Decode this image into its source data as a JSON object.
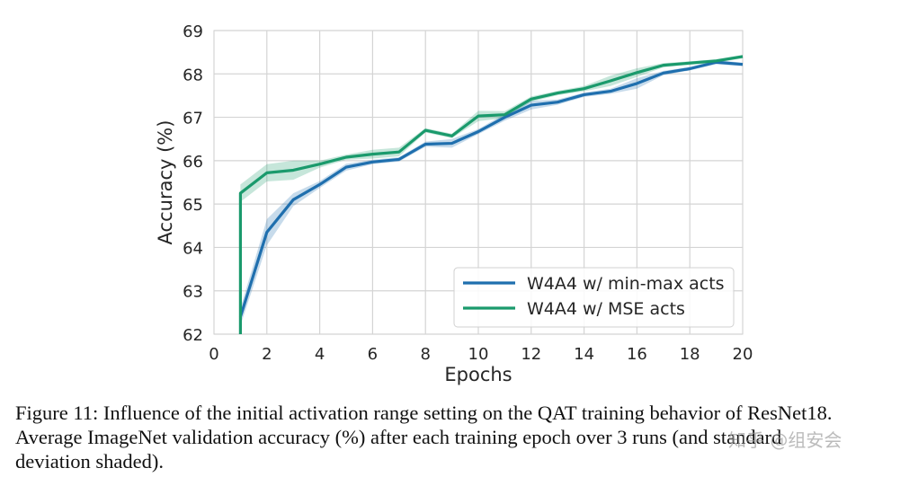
{
  "chart_data": {
    "type": "line",
    "xlabel": "Epochs",
    "ylabel": "Accuracy (%)",
    "xlim": [
      0,
      20
    ],
    "ylim": [
      62,
      69
    ],
    "xticks": [
      0,
      2,
      4,
      6,
      8,
      10,
      12,
      14,
      16,
      18,
      20
    ],
    "yticks": [
      62,
      63,
      64,
      65,
      66,
      67,
      68,
      69
    ],
    "grid": true,
    "legend_position": "lower-right",
    "series": [
      {
        "name": "W4A4 w/ min-max acts",
        "color": "#1f6fae",
        "x": [
          1,
          2,
          3,
          4,
          5,
          6,
          7,
          8,
          9,
          10,
          11,
          12,
          13,
          14,
          15,
          16,
          17,
          18,
          19,
          20
        ],
        "y": [
          62.4,
          64.35,
          65.1,
          65.45,
          65.85,
          65.97,
          66.03,
          66.38,
          66.4,
          66.67,
          67.0,
          67.28,
          67.35,
          67.52,
          67.6,
          67.78,
          68.02,
          68.12,
          68.27,
          68.22
        ],
        "band": [
          0.2,
          0.3,
          0.15,
          0.08,
          0.08,
          0.05,
          0.05,
          0.06,
          0.1,
          0.06,
          0.08,
          0.1,
          0.06,
          0.05,
          0.06,
          0.12,
          0.05,
          0.04,
          0.05,
          0.04
        ]
      },
      {
        "name": "W4A4 w/ MSE acts",
        "color": "#1a9a6c",
        "x": [
          1,
          1,
          2,
          3,
          4,
          5,
          6,
          7,
          8,
          9,
          10,
          11,
          12,
          13,
          14,
          15,
          16,
          17,
          18,
          19,
          20
        ],
        "y": [
          62.0,
          65.25,
          65.72,
          65.78,
          65.92,
          66.08,
          66.15,
          66.2,
          66.7,
          66.57,
          67.03,
          67.06,
          67.42,
          67.56,
          67.66,
          67.84,
          68.03,
          68.2,
          68.25,
          68.3,
          68.4
        ],
        "band": [
          0.0,
          0.2,
          0.2,
          0.22,
          0.08,
          0.06,
          0.1,
          0.1,
          0.05,
          0.05,
          0.12,
          0.08,
          0.06,
          0.05,
          0.06,
          0.12,
          0.1,
          0.05,
          0.04,
          0.04,
          0.04
        ]
      }
    ]
  },
  "caption": {
    "line1": "Figure 11: Influence of the initial activation range setting on the QAT training behavior of ResNet18.",
    "line2": "Average ImageNet validation accuracy (%) after each training epoch over 3 runs (and standard",
    "line3": "deviation shaded)."
  },
  "watermark": "知乎 @组安会"
}
